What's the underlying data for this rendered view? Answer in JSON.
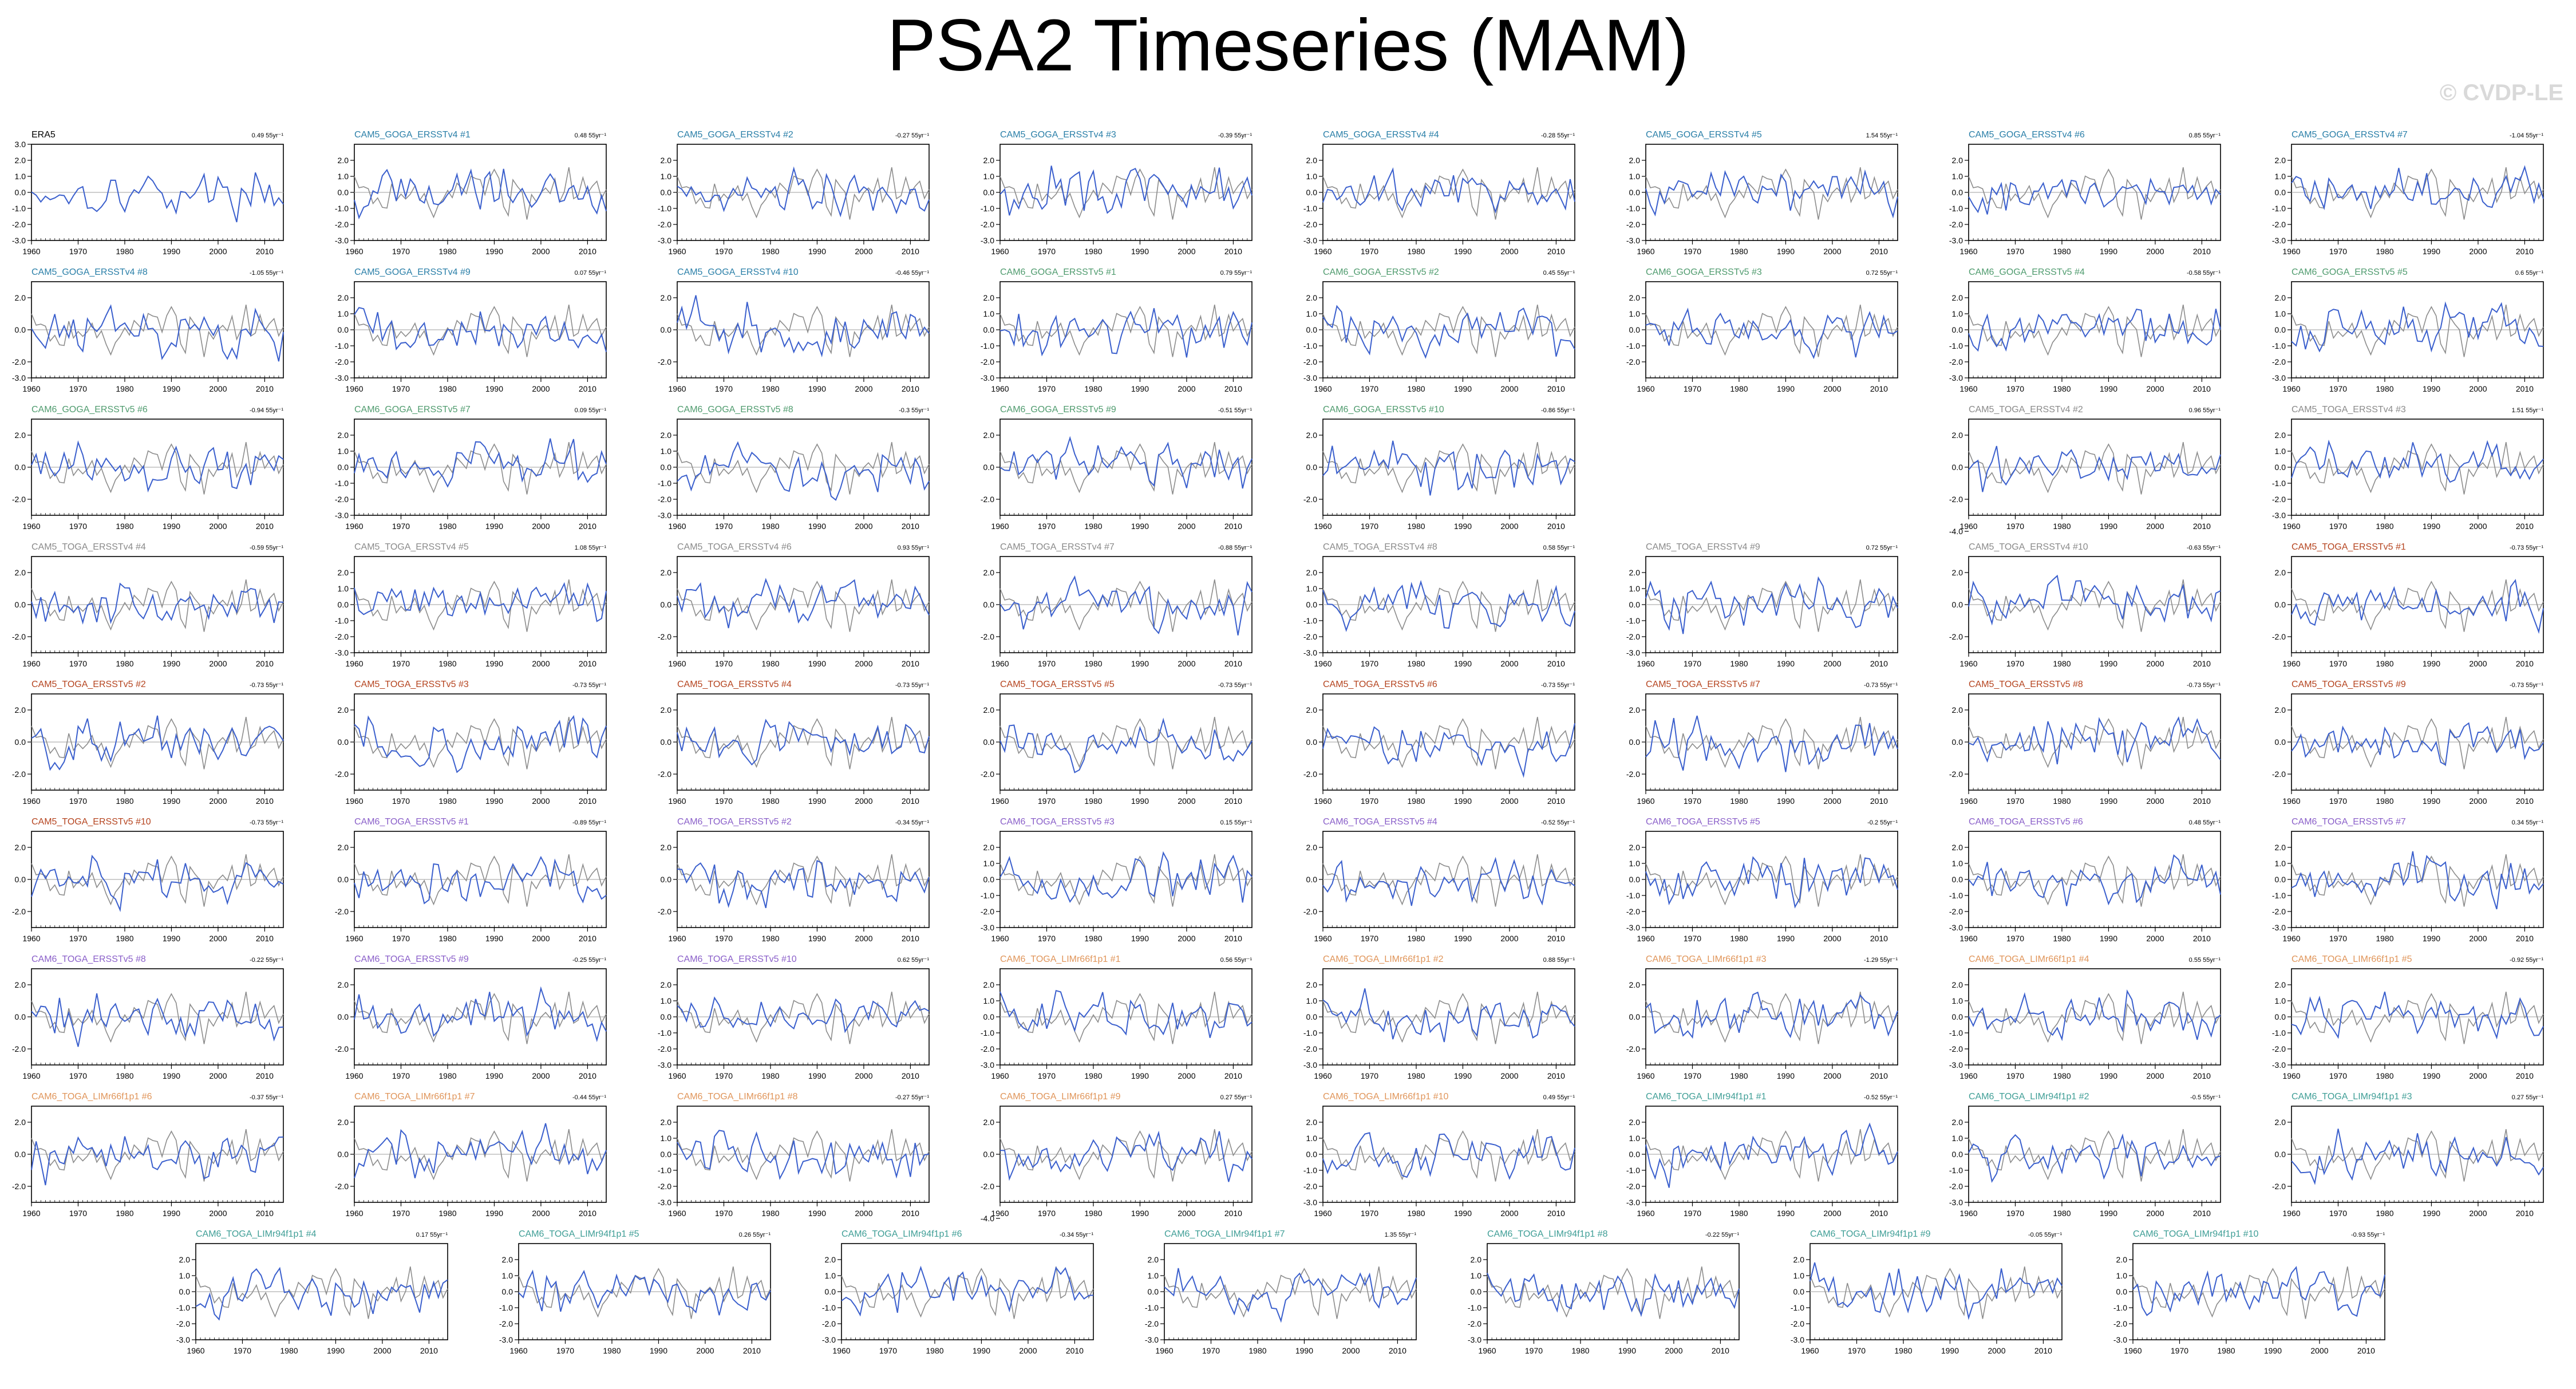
{
  "title": "PSA2 Timeseries (MAM)",
  "watermark": "© CVDP-LE",
  "colors": {
    "member": "#3a5fcd",
    "reference": "#8c8c8c",
    "zero_line": "#b0b0b0"
  },
  "chart_data": {
    "type": "line",
    "x_range": [
      1960,
      2014
    ],
    "x_ticks": [
      "1960",
      "1970",
      "1980",
      "1990",
      "2000",
      "2010"
    ],
    "ylim": [
      -3.0,
      3.0
    ],
    "y_ticks_default": [
      "-3.0",
      "-2.0",
      "-1.0",
      "0.0",
      "1.0",
      "2.0",
      "3.0"
    ],
    "panels": [
      {
        "name": "ERA5",
        "trend": "0.49 55yr⁻¹",
        "color": "#000000",
        "y_ticks": [
          "-3.0",
          "-2.0",
          "-1.0",
          "0.0",
          "1.0",
          "2.0",
          "3.0"
        ]
      },
      {
        "name": "CAM5_GOGA_ERSSTv4 #1",
        "trend": "0.48 55yr⁻¹",
        "color": "#2a7fa8",
        "y_ticks": [
          "-3.0",
          "-2.0",
          "-1.0",
          "0.0",
          "1.0",
          "2.0"
        ]
      },
      {
        "name": "CAM5_GOGA_ERSSTv4 #2",
        "trend": "-0.27 55yr⁻¹",
        "color": "#2a7fa8",
        "y_ticks": [
          "-3.0",
          "-2.0",
          "-1.0",
          "0.0",
          "1.0",
          "2.0"
        ]
      },
      {
        "name": "CAM5_GOGA_ERSSTv4 #3",
        "trend": "-0.39 55yr⁻¹",
        "color": "#2a7fa8",
        "y_ticks": [
          "-3.0",
          "-2.0",
          "-1.0",
          "0.0",
          "1.0",
          "2.0"
        ]
      },
      {
        "name": "CAM5_GOGA_ERSSTv4 #4",
        "trend": "-0.28 55yr⁻¹",
        "color": "#2a7fa8",
        "y_ticks": [
          "-3.0",
          "-2.0",
          "-1.0",
          "0.0",
          "1.0",
          "2.0"
        ]
      },
      {
        "name": "CAM5_GOGA_ERSSTv4 #5",
        "trend": "1.54 55yr⁻¹",
        "color": "#2a7fa8",
        "y_ticks": [
          "-3.0",
          "-2.0",
          "-1.0",
          "0.0",
          "1.0",
          "2.0"
        ]
      },
      {
        "name": "CAM5_GOGA_ERSSTv4 #6",
        "trend": "0.85 55yr⁻¹",
        "color": "#2a7fa8",
        "y_ticks": [
          "-3.0",
          "-2.0",
          "-1.0",
          "0.0",
          "1.0",
          "2.0"
        ]
      },
      {
        "name": "CAM5_GOGA_ERSSTv4 #7",
        "trend": "-1.04 55yr⁻¹",
        "color": "#2a7fa8",
        "y_ticks": [
          "-3.0",
          "-2.0",
          "-1.0",
          "0.0",
          "1.0",
          "2.0"
        ]
      },
      {
        "name": "CAM5_GOGA_ERSSTv4 #8",
        "trend": "-1.05 55yr⁻¹",
        "color": "#2a7fa8",
        "y_ticks": [
          "-3.0",
          "-2.0",
          "0.0",
          "2.0"
        ]
      },
      {
        "name": "CAM5_GOGA_ERSSTv4 #9",
        "trend": "0.07 55yr⁻¹",
        "color": "#2a7fa8",
        "y_ticks": [
          "-3.0",
          "-2.0",
          "-1.0",
          "0.0",
          "1.0",
          "2.0"
        ]
      },
      {
        "name": "CAM5_GOGA_ERSSTv4 #10",
        "trend": "-0.46 55yr⁻¹",
        "color": "#2a7fa8",
        "y_ticks": [
          "-2.0",
          "0.0",
          "2.0"
        ]
      },
      {
        "name": "CAM6_GOGA_ERSSTv5 #1",
        "trend": "0.79 55yr⁻¹",
        "color": "#4f9b6e",
        "y_ticks": [
          "-3.0",
          "-2.0",
          "-1.0",
          "0.0",
          "1.0",
          "2.0"
        ]
      },
      {
        "name": "CAM6_GOGA_ERSSTv5 #2",
        "trend": "0.45 55yr⁻¹",
        "color": "#4f9b6e",
        "y_ticks": [
          "-3.0",
          "-2.0",
          "-1.0",
          "0.0",
          "1.0",
          "2.0"
        ]
      },
      {
        "name": "CAM6_GOGA_ERSSTv5 #3",
        "trend": "0.72 55yr⁻¹",
        "color": "#4f9b6e",
        "y_ticks": [
          "-2.0",
          "-1.0",
          "0.0",
          "1.0",
          "2.0"
        ]
      },
      {
        "name": "CAM6_GOGA_ERSSTv5 #4",
        "trend": "-0.58 55yr⁻¹",
        "color": "#4f9b6e",
        "y_ticks": [
          "-3.0",
          "-2.0",
          "-1.0",
          "0.0",
          "1.0",
          "2.0"
        ]
      },
      {
        "name": "CAM6_GOGA_ERSSTv5 #5",
        "trend": "0.6 55yr⁻¹",
        "color": "#4f9b6e",
        "y_ticks": [
          "-3.0",
          "-2.0",
          "-1.0",
          "0.0",
          "1.0",
          "2.0"
        ]
      },
      {
        "name": "CAM6_GOGA_ERSSTv5 #6",
        "trend": "-0.94 55yr⁻¹",
        "color": "#4f9b6e",
        "y_ticks": [
          "-2.0",
          "0.0",
          "2.0"
        ]
      },
      {
        "name": "CAM6_GOGA_ERSSTv5 #7",
        "trend": "0.09 55yr⁻¹",
        "color": "#4f9b6e",
        "y_ticks": [
          "-3.0",
          "-2.0",
          "-1.0",
          "0.0",
          "1.0",
          "2.0"
        ]
      },
      {
        "name": "CAM6_GOGA_ERSSTv5 #8",
        "trend": "-0.3 55yr⁻¹",
        "color": "#4f9b6e",
        "y_ticks": [
          "-3.0",
          "-2.0",
          "-1.0",
          "0.0",
          "1.0",
          "2.0"
        ]
      },
      {
        "name": "CAM6_GOGA_ERSSTv5 #9",
        "trend": "-0.51 55yr⁻¹",
        "color": "#4f9b6e",
        "y_ticks": [
          "-2.0",
          "0.0",
          "2.0"
        ]
      },
      {
        "name": "CAM6_GOGA_ERSSTv5 #10",
        "trend": "-0.86 55yr⁻¹",
        "color": "#4f9b6e",
        "y_ticks": [
          "-2.0",
          "0.0",
          "2.0"
        ]
      },
      {
        "empty": true
      },
      {
        "name": "CAM5_TOGA_ERSSTv4 #2",
        "trend": "0.96 55yr⁻¹",
        "color": "#8a8a8a",
        "y_ticks": [
          "-4.0",
          "-2.0",
          "0.0",
          "2.0"
        ]
      },
      {
        "name": "CAM5_TOGA_ERSSTv4 #3",
        "trend": "1.51 55yr⁻¹",
        "color": "#8a8a8a",
        "y_ticks": [
          "-3.0",
          "-2.0",
          "-1.0",
          "0.0",
          "1.0",
          "2.0"
        ]
      },
      {
        "name": "CAM5_TOGA_ERSSTv4 #4",
        "trend": "-0.59 55yr⁻¹",
        "color": "#8a8a8a",
        "y_ticks": [
          "-2.0",
          "0.0",
          "2.0"
        ]
      },
      {
        "name": "CAM5_TOGA_ERSSTv4 #5",
        "trend": "1.08 55yr⁻¹",
        "color": "#8a8a8a",
        "y_ticks": [
          "-3.0",
          "-2.0",
          "-1.0",
          "0.0",
          "1.0",
          "2.0"
        ]
      },
      {
        "name": "CAM5_TOGA_ERSSTv4 #6",
        "trend": "0.93 55yr⁻¹",
        "color": "#8a8a8a",
        "y_ticks": [
          "-2.0",
          "0.0",
          "2.0"
        ]
      },
      {
        "name": "CAM5_TOGA_ERSSTv4 #7",
        "trend": "-0.88 55yr⁻¹",
        "color": "#8a8a8a",
        "y_ticks": [
          "-2.0",
          "0.0",
          "2.0"
        ]
      },
      {
        "name": "CAM5_TOGA_ERSSTv4 #8",
        "trend": "0.58 55yr⁻¹",
        "color": "#8a8a8a",
        "y_ticks": [
          "-3.0",
          "-2.0",
          "-1.0",
          "0.0",
          "1.0",
          "2.0"
        ]
      },
      {
        "name": "CAM5_TOGA_ERSSTv4 #9",
        "trend": "0.72 55yr⁻¹",
        "color": "#8a8a8a",
        "y_ticks": [
          "-3.0",
          "-2.0",
          "-1.0",
          "0.0",
          "1.0",
          "2.0"
        ]
      },
      {
        "name": "CAM5_TOGA_ERSSTv4 #10",
        "trend": "-0.63 55yr⁻¹",
        "color": "#8a8a8a",
        "y_ticks": [
          "-2.0",
          "0.0",
          "2.0"
        ]
      },
      {
        "name": "CAM5_TOGA_ERSSTv5 #1",
        "trend": "-0.73 55yr⁻¹",
        "color": "#b5441f",
        "y_ticks": [
          "-2.0",
          "0.0",
          "2.0"
        ]
      },
      {
        "name": "CAM5_TOGA_ERSSTv5 #2",
        "trend": "-0.73 55yr⁻¹",
        "color": "#b5441f",
        "y_ticks": [
          "-2.0",
          "0.0",
          "2.0"
        ]
      },
      {
        "name": "CAM5_TOGA_ERSSTv5 #3",
        "trend": "-0.73 55yr⁻¹",
        "color": "#b5441f",
        "y_ticks": [
          "-2.0",
          "0.0",
          "2.0"
        ]
      },
      {
        "name": "CAM5_TOGA_ERSSTv5 #4",
        "trend": "-0.73 55yr⁻¹",
        "color": "#b5441f",
        "y_ticks": [
          "-2.0",
          "0.0",
          "2.0"
        ]
      },
      {
        "name": "CAM5_TOGA_ERSSTv5 #5",
        "trend": "-0.73 55yr⁻¹",
        "color": "#b5441f",
        "y_ticks": [
          "-2.0",
          "0.0",
          "2.0"
        ]
      },
      {
        "name": "CAM5_TOGA_ERSSTv5 #6",
        "trend": "-0.73 55yr⁻¹",
        "color": "#b5441f",
        "y_ticks": [
          "-2.0",
          "0.0",
          "2.0"
        ]
      },
      {
        "name": "CAM5_TOGA_ERSSTv5 #7",
        "trend": "-0.73 55yr⁻¹",
        "color": "#b5441f",
        "y_ticks": [
          "-2.0",
          "0.0",
          "2.0"
        ]
      },
      {
        "name": "CAM5_TOGA_ERSSTv5 #8",
        "trend": "-0.73 55yr⁻¹",
        "color": "#b5441f",
        "y_ticks": [
          "-2.0",
          "0.0",
          "2.0"
        ]
      },
      {
        "name": "CAM5_TOGA_ERSSTv5 #9",
        "trend": "-0.73 55yr⁻¹",
        "color": "#b5441f",
        "y_ticks": [
          "-2.0",
          "0.0",
          "2.0"
        ]
      },
      {
        "name": "CAM5_TOGA_ERSSTv5 #10",
        "trend": "-0.73 55yr⁻¹",
        "color": "#b5441f",
        "y_ticks": [
          "-2.0",
          "0.0",
          "2.0"
        ]
      },
      {
        "name": "CAM6_TOGA_ERSSTv5 #1",
        "trend": "-0.89 55yr⁻¹",
        "color": "#8a5fc9",
        "y_ticks": [
          "-2.0",
          "0.0",
          "2.0"
        ]
      },
      {
        "name": "CAM6_TOGA_ERSSTv5 #2",
        "trend": "-0.34 55yr⁻¹",
        "color": "#8a5fc9",
        "y_ticks": [
          "-2.0",
          "0.0",
          "2.0"
        ]
      },
      {
        "name": "CAM6_TOGA_ERSSTv5 #3",
        "trend": "0.15 55yr⁻¹",
        "color": "#8a5fc9",
        "y_ticks": [
          "-3.0",
          "-2.0",
          "-1.0",
          "0.0",
          "1.0",
          "2.0"
        ]
      },
      {
        "name": "CAM6_TOGA_ERSSTv5 #4",
        "trend": "-0.52 55yr⁻¹",
        "color": "#8a5fc9",
        "y_ticks": [
          "-2.0",
          "0.0",
          "2.0"
        ]
      },
      {
        "name": "CAM6_TOGA_ERSSTv5 #5",
        "trend": "-0.2 55yr⁻¹",
        "color": "#8a5fc9",
        "y_ticks": [
          "-3.0",
          "-2.0",
          "-1.0",
          "0.0",
          "1.0",
          "2.0"
        ]
      },
      {
        "name": "CAM6_TOGA_ERSSTv5 #6",
        "trend": "0.48 55yr⁻¹",
        "color": "#8a5fc9",
        "y_ticks": [
          "-3.0",
          "-2.0",
          "-1.0",
          "0.0",
          "1.0",
          "2.0"
        ]
      },
      {
        "name": "CAM6_TOGA_ERSSTv5 #7",
        "trend": "0.34 55yr⁻¹",
        "color": "#8a5fc9",
        "y_ticks": [
          "-3.0",
          "-2.0",
          "-1.0",
          "0.0",
          "1.0",
          "2.0"
        ]
      },
      {
        "name": "CAM6_TOGA_ERSSTv5 #8",
        "trend": "-0.22 55yr⁻¹",
        "color": "#8a5fc9",
        "y_ticks": [
          "-2.0",
          "0.0",
          "2.0"
        ]
      },
      {
        "name": "CAM6_TOGA_ERSSTv5 #9",
        "trend": "-0.25 55yr⁻¹",
        "color": "#8a5fc9",
        "y_ticks": [
          "-2.0",
          "0.0",
          "2.0"
        ]
      },
      {
        "name": "CAM6_TOGA_ERSSTv5 #10",
        "trend": "0.62 55yr⁻¹",
        "color": "#8a5fc9",
        "y_ticks": [
          "-3.0",
          "-2.0",
          "-1.0",
          "0.0",
          "1.0",
          "2.0"
        ]
      },
      {
        "name": "CAM6_TOGA_LIMr66f1p1 #1",
        "trend": "0.56 55yr⁻¹",
        "color": "#e0955a",
        "y_ticks": [
          "-3.0",
          "-2.0",
          "-1.0",
          "0.0",
          "1.0",
          "2.0"
        ]
      },
      {
        "name": "CAM6_TOGA_LIMr66f1p1 #2",
        "trend": "0.88 55yr⁻¹",
        "color": "#e0955a",
        "y_ticks": [
          "-3.0",
          "-2.0",
          "-1.0",
          "0.0",
          "1.0",
          "2.0"
        ]
      },
      {
        "name": "CAM6_TOGA_LIMr66f1p1 #3",
        "trend": "-1.29 55yr⁻¹",
        "color": "#e0955a",
        "y_ticks": [
          "-2.0",
          "0.0",
          "2.0"
        ]
      },
      {
        "name": "CAM6_TOGA_LIMr66f1p1 #4",
        "trend": "0.55 55yr⁻¹",
        "color": "#e0955a",
        "y_ticks": [
          "-3.0",
          "-2.0",
          "-1.0",
          "0.0",
          "1.0",
          "2.0"
        ]
      },
      {
        "name": "CAM6_TOGA_LIMr66f1p1 #5",
        "trend": "-0.92 55yr⁻¹",
        "color": "#e0955a",
        "y_ticks": [
          "-3.0",
          "-2.0",
          "-1.0",
          "0.0",
          "1.0",
          "2.0"
        ]
      },
      {
        "name": "CAM6_TOGA_LIMr66f1p1 #6",
        "trend": "-0.37 55yr⁻¹",
        "color": "#e0955a",
        "y_ticks": [
          "-2.0",
          "0.0",
          "2.0"
        ]
      },
      {
        "name": "CAM6_TOGA_LIMr66f1p1 #7",
        "trend": "-0.44 55yr⁻¹",
        "color": "#e0955a",
        "y_ticks": [
          "-2.0",
          "0.0",
          "2.0"
        ]
      },
      {
        "name": "CAM6_TOGA_LIMr66f1p1 #8",
        "trend": "-0.27 55yr⁻¹",
        "color": "#e0955a",
        "y_ticks": [
          "-3.0",
          "-2.0",
          "-1.0",
          "0.0",
          "1.0",
          "2.0"
        ]
      },
      {
        "name": "CAM6_TOGA_LIMr66f1p1 #9",
        "trend": "0.27 55yr⁻¹",
        "color": "#e0955a",
        "y_ticks": [
          "-4.0",
          "-2.0",
          "0.0",
          "2.0"
        ]
      },
      {
        "name": "CAM6_TOGA_LIMr66f1p1 #10",
        "trend": "0.49 55yr⁻¹",
        "color": "#e0955a",
        "y_ticks": [
          "-3.0",
          "-2.0",
          "-1.0",
          "0.0",
          "1.0",
          "2.0"
        ]
      },
      {
        "name": "CAM6_TOGA_LIMr94f1p1 #1",
        "trend": "-0.52 55yr⁻¹",
        "color": "#3f9e96",
        "y_ticks": [
          "-3.0",
          "-2.0",
          "-1.0",
          "0.0",
          "1.0",
          "2.0"
        ]
      },
      {
        "name": "CAM6_TOGA_LIMr94f1p1 #2",
        "trend": "-0.5 55yr⁻¹",
        "color": "#3f9e96",
        "y_ticks": [
          "-3.0",
          "-2.0",
          "-1.0",
          "0.0",
          "1.0",
          "2.0"
        ]
      },
      {
        "name": "CAM6_TOGA_LIMr94f1p1 #3",
        "trend": "0.27 55yr⁻¹",
        "color": "#3f9e96",
        "y_ticks": [
          "-2.0",
          "0.0",
          "2.0"
        ]
      },
      {
        "name": "CAM6_TOGA_LIMr94f1p1 #4",
        "trend": "0.17 55yr⁻¹",
        "color": "#3f9e96",
        "y_ticks": [
          "-3.0",
          "-2.0",
          "-1.0",
          "0.0",
          "1.0",
          "2.0"
        ]
      },
      {
        "name": "CAM6_TOGA_LIMr94f1p1 #5",
        "trend": "0.26 55yr⁻¹",
        "color": "#3f9e96",
        "y_ticks": [
          "-3.0",
          "-2.0",
          "-1.0",
          "0.0",
          "1.0",
          "2.0"
        ]
      },
      {
        "name": "CAM6_TOGA_LIMr94f1p1 #6",
        "trend": "-0.34 55yr⁻¹",
        "color": "#3f9e96",
        "y_ticks": [
          "-3.0",
          "-2.0",
          "-1.0",
          "0.0",
          "1.0",
          "2.0"
        ]
      },
      {
        "name": "CAM6_TOGA_LIMr94f1p1 #7",
        "trend": "1.35 55yr⁻¹",
        "color": "#3f9e96",
        "y_ticks": [
          "-3.0",
          "-2.0",
          "-1.0",
          "0.0",
          "1.0",
          "2.0"
        ]
      },
      {
        "name": "CAM6_TOGA_LIMr94f1p1 #8",
        "trend": "-0.22 55yr⁻¹",
        "color": "#3f9e96",
        "y_ticks": [
          "-3.0",
          "-2.0",
          "-1.0",
          "0.0",
          "1.0",
          "2.0"
        ]
      },
      {
        "name": "CAM6_TOGA_LIMr94f1p1 #9",
        "trend": "-0.05 55yr⁻¹",
        "color": "#3f9e96",
        "y_ticks": [
          "-3.0",
          "-2.0",
          "-1.0",
          "0.0",
          "1.0",
          "2.0"
        ]
      },
      {
        "name": "CAM6_TOGA_LIMr94f1p1 #10",
        "trend": "-0.93 55yr⁻¹",
        "color": "#3f9e96",
        "y_ticks": [
          "-3.0",
          "-2.0",
          "-1.0",
          "0.0",
          "1.0",
          "2.0"
        ]
      }
    ]
  }
}
